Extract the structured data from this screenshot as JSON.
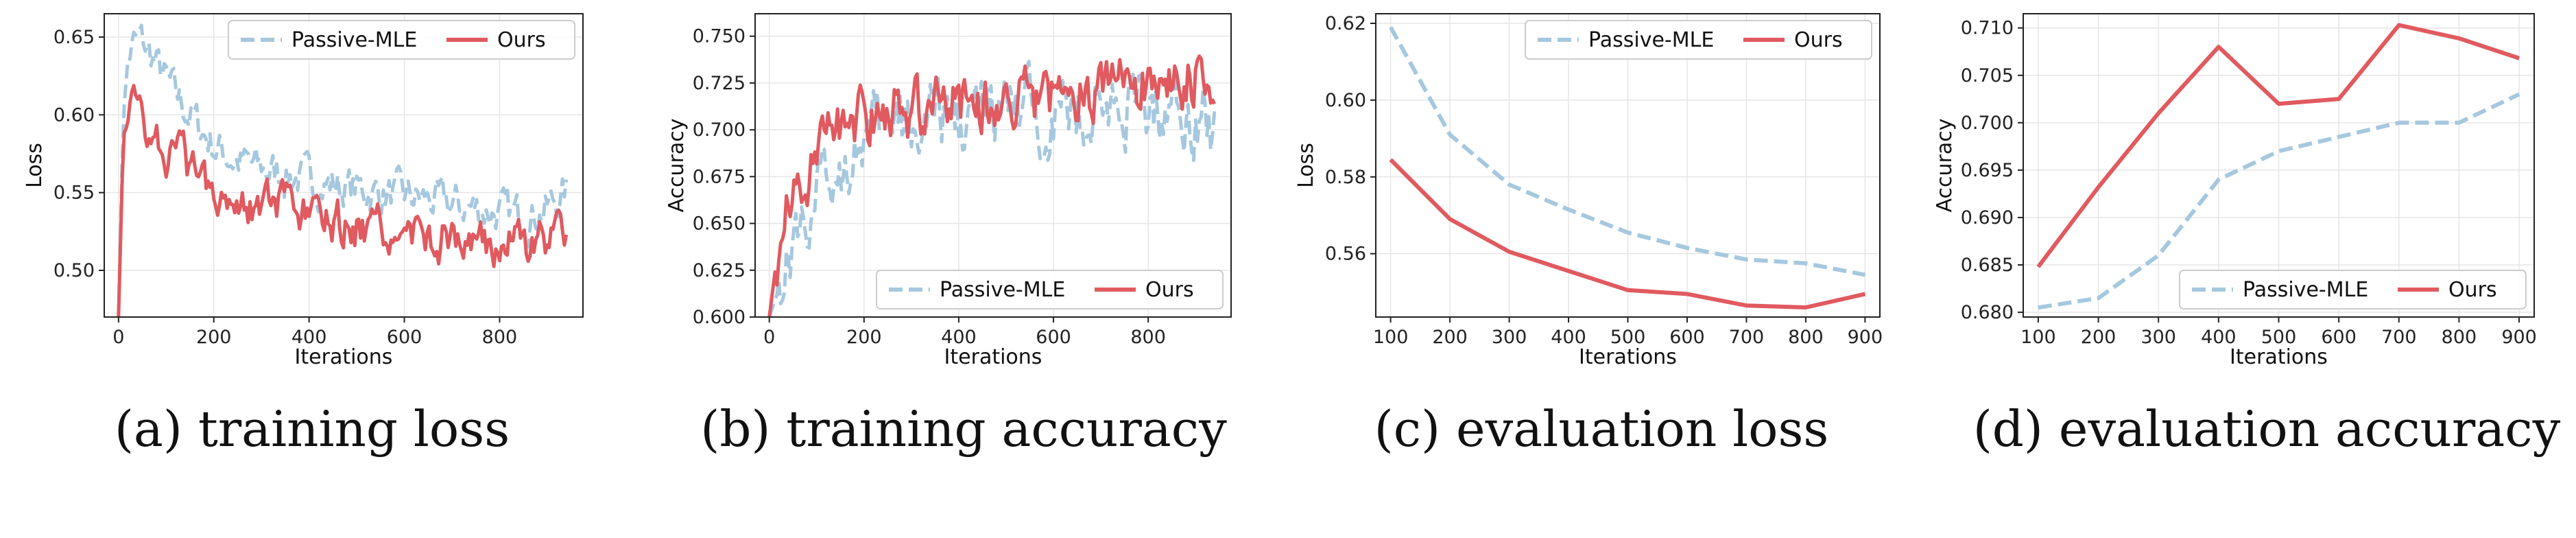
{
  "colors": {
    "passive": "#a6c8df",
    "ours": "#e05a5f",
    "grid": "#e6e6e6",
    "axis": "#222222"
  },
  "chart_data": [
    {
      "type": "line",
      "id": "a",
      "caption": "(a) training loss",
      "xlabel": "Iterations",
      "ylabel": "Loss",
      "xlim": [
        -30,
        975
      ],
      "ylim": [
        0.47,
        0.665
      ],
      "xticks": [
        0,
        200,
        400,
        600,
        800
      ],
      "yticks": [
        0.5,
        0.55,
        0.6,
        0.65
      ],
      "ytick_labels": [
        "0.50",
        "0.55",
        "0.60",
        "0.65"
      ],
      "legend_loc": "upper-right",
      "legend": [
        "Passive-MLE",
        "Ours"
      ],
      "series": [
        {
          "name": "Passive-MLE",
          "style": "dashed",
          "x": [
            0,
            10,
            20,
            30,
            45,
            60,
            80,
            100,
            120,
            150,
            180,
            200,
            250,
            300,
            350,
            400,
            450,
            500,
            550,
            600,
            650,
            700,
            750,
            800,
            850,
            900,
            940
          ],
          "y": [
            0.47,
            0.6,
            0.635,
            0.645,
            0.648,
            0.642,
            0.632,
            0.622,
            0.612,
            0.6,
            0.588,
            0.58,
            0.57,
            0.565,
            0.562,
            0.558,
            0.555,
            0.552,
            0.55,
            0.547,
            0.545,
            0.542,
            0.54,
            0.537,
            0.535,
            0.54,
            0.55
          ]
        },
        {
          "name": "Ours",
          "style": "solid",
          "x": [
            0,
            10,
            20,
            30,
            45,
            60,
            80,
            100,
            120,
            150,
            180,
            200,
            250,
            300,
            350,
            400,
            450,
            500,
            550,
            600,
            650,
            700,
            750,
            800,
            850,
            900,
            940
          ],
          "y": [
            0.47,
            0.585,
            0.603,
            0.607,
            0.603,
            0.595,
            0.585,
            0.578,
            0.572,
            0.565,
            0.56,
            0.555,
            0.548,
            0.542,
            0.538,
            0.533,
            0.53,
            0.527,
            0.524,
            0.523,
            0.522,
            0.52,
            0.518,
            0.517,
            0.516,
            0.518,
            0.525
          ]
        }
      ]
    },
    {
      "type": "line",
      "id": "b",
      "caption": "(b) training accuracy",
      "xlabel": "Iterations",
      "ylabel": "Accuracy",
      "xlim": [
        -30,
        975
      ],
      "ylim": [
        0.6,
        0.762
      ],
      "xticks": [
        0,
        200,
        400,
        600,
        800
      ],
      "yticks": [
        0.6,
        0.625,
        0.65,
        0.675,
        0.7,
        0.725,
        0.75
      ],
      "ytick_labels": [
        "0.600",
        "0.625",
        "0.650",
        "0.675",
        "0.700",
        "0.725",
        "0.750"
      ],
      "legend_loc": "lower-right",
      "legend": [
        "Passive-MLE",
        "Ours"
      ],
      "series": [
        {
          "name": "Passive-MLE",
          "style": "dashed",
          "x": [
            0,
            20,
            40,
            60,
            80,
            100,
            130,
            160,
            200,
            250,
            300,
            350,
            400,
            450,
            500,
            550,
            600,
            650,
            700,
            750,
            800,
            850,
            900,
            940
          ],
          "y": [
            0.6,
            0.615,
            0.63,
            0.645,
            0.655,
            0.665,
            0.675,
            0.685,
            0.695,
            0.7,
            0.703,
            0.705,
            0.707,
            0.708,
            0.709,
            0.71,
            0.71,
            0.711,
            0.711,
            0.712,
            0.712,
            0.712,
            0.71,
            0.7
          ]
        },
        {
          "name": "Ours",
          "style": "solid",
          "x": [
            0,
            20,
            40,
            60,
            80,
            100,
            130,
            160,
            200,
            250,
            300,
            350,
            400,
            450,
            500,
            550,
            600,
            650,
            700,
            750,
            800,
            850,
            900,
            940
          ],
          "y": [
            0.6,
            0.64,
            0.66,
            0.672,
            0.68,
            0.688,
            0.695,
            0.7,
            0.705,
            0.708,
            0.71,
            0.712,
            0.714,
            0.716,
            0.717,
            0.718,
            0.719,
            0.72,
            0.722,
            0.724,
            0.726,
            0.728,
            0.728,
            0.712
          ]
        }
      ]
    },
    {
      "type": "line",
      "id": "c",
      "caption": "(c) evaluation loss",
      "xlabel": "Iterations",
      "ylabel": "Loss",
      "xlim": [
        75,
        925
      ],
      "ylim": [
        0.5435,
        0.6225
      ],
      "xticks": [
        100,
        200,
        300,
        400,
        500,
        600,
        700,
        800,
        900
      ],
      "yticks": [
        0.56,
        0.58,
        0.6,
        0.62
      ],
      "ytick_labels": [
        "0.56",
        "0.58",
        "0.60",
        "0.62"
      ],
      "legend_loc": "upper-right",
      "legend": [
        "Passive-MLE",
        "Ours"
      ],
      "series": [
        {
          "name": "Passive-MLE",
          "style": "dashed",
          "x": [
            100,
            200,
            300,
            400,
            500,
            600,
            700,
            800,
            900
          ],
          "y": [
            0.619,
            0.591,
            0.578,
            0.5715,
            0.5655,
            0.5615,
            0.5585,
            0.5575,
            0.5545
          ]
        },
        {
          "name": "Ours",
          "style": "solid",
          "x": [
            100,
            200,
            300,
            400,
            500,
            600,
            700,
            800,
            900
          ],
          "y": [
            0.5845,
            0.569,
            0.5605,
            0.5555,
            0.5505,
            0.5495,
            0.5465,
            0.546,
            0.5495
          ]
        }
      ]
    },
    {
      "type": "line",
      "id": "d",
      "caption": "(d) evaluation accuracy",
      "xlabel": "Iterations",
      "ylabel": "Accuracy",
      "xlim": [
        75,
        925
      ],
      "ylim": [
        0.6795,
        0.7115
      ],
      "xticks": [
        100,
        200,
        300,
        400,
        500,
        600,
        700,
        800,
        900
      ],
      "yticks": [
        0.68,
        0.685,
        0.69,
        0.695,
        0.7,
        0.705,
        0.71
      ],
      "ytick_labels": [
        "0.680",
        "0.685",
        "0.690",
        "0.695",
        "0.700",
        "0.705",
        "0.710"
      ],
      "legend_loc": "lower-right",
      "legend": [
        "Passive-MLE",
        "Ours"
      ],
      "series": [
        {
          "name": "Passive-MLE",
          "style": "dashed",
          "x": [
            100,
            200,
            300,
            400,
            500,
            600,
            700,
            800,
            900
          ],
          "y": [
            0.6805,
            0.6815,
            0.686,
            0.694,
            0.697,
            0.6985,
            0.7,
            0.7,
            0.703
          ]
        },
        {
          "name": "Ours",
          "style": "solid",
          "x": [
            100,
            200,
            300,
            400,
            500,
            600,
            700,
            800,
            900
          ],
          "y": [
            0.6848,
            0.6932,
            0.701,
            0.708,
            0.702,
            0.7025,
            0.7103,
            0.7089,
            0.7068
          ]
        }
      ]
    }
  ]
}
